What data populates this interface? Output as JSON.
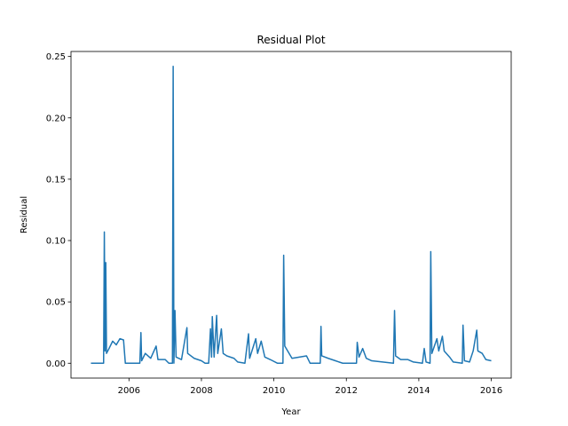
{
  "chart_data": {
    "type": "line",
    "title": "Residual Plot",
    "xlabel": "Year",
    "ylabel": "Residual",
    "x": [
      2004.95,
      2005.3,
      2005.32,
      2005.34,
      2005.36,
      2005.38,
      2005.45,
      2005.55,
      2005.65,
      2005.75,
      2005.85,
      2005.9,
      2006.3,
      2006.33,
      2006.35,
      2006.45,
      2006.6,
      2006.75,
      2006.8,
      2007.0,
      2007.1,
      2007.2,
      2007.22,
      2007.24,
      2007.27,
      2007.3,
      2007.45,
      2007.6,
      2007.62,
      2007.8,
      2008.0,
      2008.1,
      2008.2,
      2008.25,
      2008.28,
      2008.3,
      2008.35,
      2008.42,
      2008.45,
      2008.55,
      2008.6,
      2008.7,
      2008.9,
      2009.0,
      2009.2,
      2009.3,
      2009.33,
      2009.5,
      2009.55,
      2009.65,
      2009.75,
      2009.9,
      2010.1,
      2010.25,
      2010.27,
      2010.3,
      2010.5,
      2010.7,
      2010.9,
      2011.0,
      2011.28,
      2011.3,
      2011.32,
      2011.5,
      2011.7,
      2011.9,
      2012.28,
      2012.3,
      2012.35,
      2012.45,
      2012.55,
      2012.7,
      2013.0,
      2013.3,
      2013.33,
      2013.36,
      2013.5,
      2013.7,
      2013.85,
      2014.1,
      2014.15,
      2014.2,
      2014.31,
      2014.33,
      2014.36,
      2014.5,
      2014.55,
      2014.65,
      2014.7,
      2014.85,
      2014.95,
      2015.2,
      2015.22,
      2015.26,
      2015.4,
      2015.5,
      2015.6,
      2015.63,
      2015.75,
      2015.85,
      2016.0
    ],
    "values": [
      0,
      0,
      0.107,
      0.01,
      0.082,
      0.008,
      0.012,
      0.018,
      0.015,
      0.02,
      0.019,
      0,
      0,
      0.025,
      0.002,
      0.008,
      0.004,
      0.014,
      0.003,
      0.003,
      0,
      0,
      0.242,
      0,
      0.043,
      0.005,
      0.003,
      0.029,
      0.008,
      0.004,
      0.002,
      0,
      0,
      0.028,
      0.005,
      0.038,
      0.005,
      0.039,
      0.008,
      0.028,
      0.008,
      0.006,
      0.004,
      0.001,
      0,
      0.024,
      0.004,
      0.02,
      0.008,
      0.018,
      0.005,
      0.003,
      0,
      0,
      0.088,
      0.014,
      0.004,
      0.005,
      0.006,
      0,
      0,
      0.03,
      0.006,
      0.004,
      0.002,
      0,
      0,
      0.017,
      0.005,
      0.012,
      0.004,
      0.002,
      0.001,
      0,
      0.043,
      0.006,
      0.003,
      0.003,
      0.001,
      0,
      0.012,
      0.001,
      0,
      0.091,
      0.008,
      0.02,
      0.01,
      0.022,
      0.01,
      0.005,
      0.001,
      0,
      0.031,
      0.002,
      0.001,
      0.01,
      0.027,
      0.01,
      0.008,
      0.003,
      0.002
    ],
    "color": "#1f77b4",
    "xlim": [
      2004.4,
      2016.55
    ],
    "xticks": [
      2006,
      2008,
      2010,
      2012,
      2014,
      2016
    ],
    "ylim": [
      -0.0121,
      0.2541
    ],
    "yticks": [
      {
        "value": 0,
        "label": "0.00"
      },
      {
        "value": 0.05,
        "label": "0.05"
      },
      {
        "value": 0.1,
        "label": "0.10"
      },
      {
        "value": 0.15,
        "label": "0.15"
      },
      {
        "value": 0.2,
        "label": "0.20"
      },
      {
        "value": 0.25,
        "label": "0.25"
      }
    ]
  }
}
